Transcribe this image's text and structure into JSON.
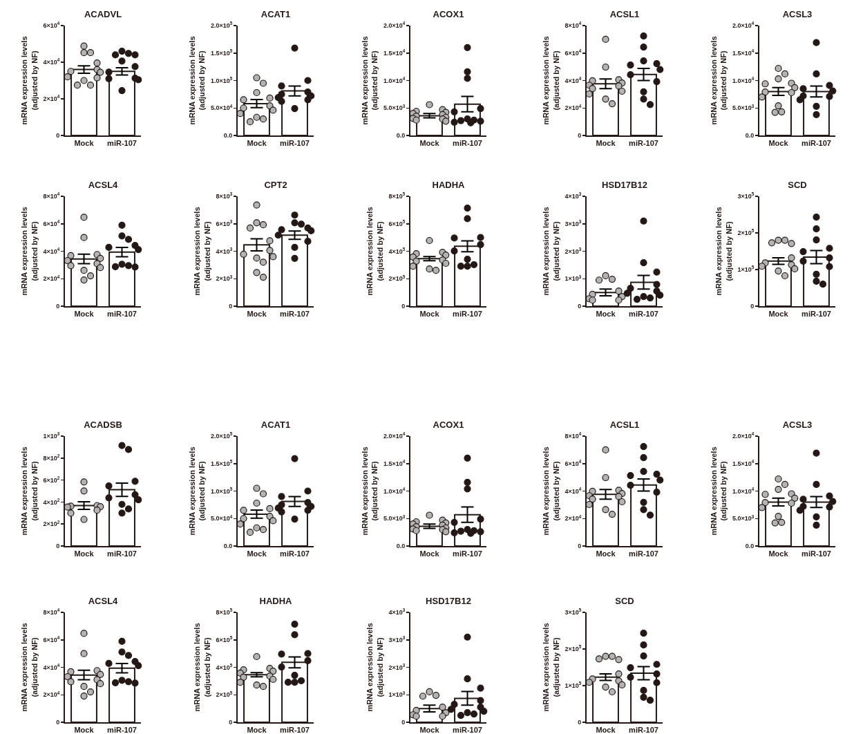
{
  "chart_data": [
    {
      "type": "bar",
      "title": "ACADVL",
      "ylabel": "mRNA expression levels\n(adjusted by NF)",
      "categories": [
        "Mock",
        "miR-107"
      ],
      "grid": false,
      "marker": "circle",
      "ylim": [
        0,
        60000
      ],
      "yticks": [
        {
          "value": 0,
          "label": "0"
        },
        {
          "value": 20000,
          "label": "2×10$^{4}$"
        },
        {
          "value": 40000,
          "label": "4×10$^{4}$"
        },
        {
          "value": 60000,
          "label": "6×10$^{4}$"
        }
      ],
      "series": [
        {
          "type": "bar",
          "color": "#ffffff",
          "values": [
            36000,
            35000
          ],
          "errors": [
            2000,
            2000
          ]
        },
        {
          "type": "scatter",
          "color": "#b3b3b3",
          "x": [
            "Mock",
            "Mock",
            "Mock",
            "Mock",
            "Mock",
            "Mock",
            "Mock",
            "Mock",
            "Mock",
            "Mock",
            "Mock",
            "Mock"
          ],
          "values": [
            48800,
            45200,
            45200,
            39600,
            36000,
            35000,
            34500,
            32000,
            31500,
            30000,
            27500,
            27500
          ]
        },
        {
          "type": "scatter",
          "color": "#231815",
          "x": [
            "miR-107",
            "miR-107",
            "miR-107",
            "miR-107",
            "miR-107",
            "miR-107",
            "miR-107",
            "miR-107",
            "miR-107",
            "miR-107",
            "miR-107"
          ],
          "values": [
            46000,
            44800,
            44000,
            44000,
            40600,
            37600,
            34600,
            31300,
            31000,
            30400,
            24500
          ]
        }
      ]
    },
    {
      "type": "bar",
      "title": "ACAT1",
      "ylabel": "mRNA expression levels\n(adjusted by NF)",
      "categories": [
        "Mock",
        "miR-107"
      ],
      "grid": false,
      "marker": "circle",
      "ylim": [
        0,
        200000
      ],
      "yticks": [
        {
          "value": 0,
          "label": "0.0"
        },
        {
          "value": 50000,
          "label": "5.0×10$^{4}$"
        },
        {
          "value": 100000,
          "label": "1.0×10$^{5}$"
        },
        {
          "value": 150000,
          "label": "1.5×10$^{5}$"
        },
        {
          "value": 200000,
          "label": "2.0×10$^{5}$"
        }
      ],
      "series": [
        {
          "type": "bar",
          "color": "#ffffff",
          "values": [
            58000,
            81000
          ],
          "errors": [
            7500,
            9000
          ]
        },
        {
          "type": "scatter",
          "color": "#b3b3b3",
          "x": [
            "Mock",
            "Mock",
            "Mock",
            "Mock",
            "Mock",
            "Mock",
            "Mock",
            "Mock",
            "Mock",
            "Mock",
            "Mock",
            "Mock"
          ],
          "values": [
            105000,
            95000,
            78000,
            68000,
            65000,
            54000,
            50000,
            46000,
            40000,
            33000,
            30000,
            25000
          ]
        },
        {
          "type": "scatter",
          "color": "#231815",
          "x": [
            "miR-107",
            "miR-107",
            "miR-107",
            "miR-107",
            "miR-107",
            "miR-107",
            "miR-107",
            "miR-107",
            "miR-107",
            "miR-107"
          ],
          "values": [
            159000,
            100000,
            90000,
            79000,
            75000,
            72000,
            69000,
            65000,
            62000,
            49000
          ]
        }
      ]
    },
    {
      "type": "bar",
      "title": "ACOX1",
      "ylabel": "mRNA expression levels\n(adjusted by NF)",
      "categories": [
        "Mock",
        "miR-107"
      ],
      "grid": false,
      "marker": "circle",
      "ylim": [
        0,
        20000
      ],
      "yticks": [
        {
          "value": 0,
          "label": "0.0"
        },
        {
          "value": 5000,
          "label": "5.0×10$^{3}$"
        },
        {
          "value": 10000,
          "label": "1.0×10$^{4}$"
        },
        {
          "value": 15000,
          "label": "1.5×10$^{4}$"
        },
        {
          "value": 20000,
          "label": "2.0×10$^{4}$"
        }
      ],
      "series": [
        {
          "type": "bar",
          "color": "#ffffff",
          "values": [
            3600,
            5700
          ],
          "errors": [
            400,
            1400
          ]
        },
        {
          "type": "scatter",
          "color": "#b3b3b3",
          "x": [
            "Mock",
            "Mock",
            "Mock",
            "Mock",
            "Mock",
            "Mock",
            "Mock",
            "Mock",
            "Mock",
            "Mock",
            "Mock",
            "Mock"
          ],
          "values": [
            5600,
            4700,
            4400,
            4200,
            4000,
            3800,
            3500,
            3300,
            3100,
            3000,
            2800,
            2600
          ]
        },
        {
          "type": "scatter",
          "color": "#231815",
          "x": [
            "miR-107",
            "miR-107",
            "miR-107",
            "miR-107",
            "miR-107",
            "miR-107",
            "miR-107",
            "miR-107",
            "miR-107",
            "miR-107",
            "miR-107"
          ],
          "values": [
            16000,
            11600,
            10400,
            4900,
            4300,
            3000,
            2800,
            2700,
            2600,
            2400,
            2300
          ]
        }
      ]
    },
    {
      "type": "bar",
      "title": "ACSL1",
      "ylabel": "mRNA expression levels\n(adjusted by NF)",
      "categories": [
        "Mock",
        "miR-107"
      ],
      "grid": false,
      "marker": "circle",
      "ylim": [
        0,
        80000
      ],
      "yticks": [
        {
          "value": 0,
          "label": "0"
        },
        {
          "value": 20000,
          "label": "2×10$^{4}$"
        },
        {
          "value": 40000,
          "label": "4×10$^{4}$"
        },
        {
          "value": 60000,
          "label": "6×10$^{4}$"
        },
        {
          "value": 80000,
          "label": "8×10$^{4}$"
        }
      ],
      "series": [
        {
          "type": "bar",
          "color": "#ffffff",
          "values": [
            37600,
            44400
          ],
          "errors": [
            3500,
            4400
          ]
        },
        {
          "type": "scatter",
          "color": "#b3b3b3",
          "x": [
            "Mock",
            "Mock",
            "Mock",
            "Mock",
            "Mock",
            "Mock",
            "Mock",
            "Mock",
            "Mock",
            "Mock",
            "Mock",
            "Mock"
          ],
          "values": [
            70000,
            49800,
            40600,
            39800,
            38200,
            36600,
            36000,
            34200,
            32200,
            30200,
            26500,
            23100
          ]
        },
        {
          "type": "scatter",
          "color": "#231815",
          "x": [
            "miR-107",
            "miR-107",
            "miR-107",
            "miR-107",
            "miR-107",
            "miR-107",
            "miR-107",
            "miR-107",
            "miR-107",
            "miR-107",
            "miR-107"
          ],
          "values": [
            72400,
            64300,
            54300,
            52300,
            51300,
            48000,
            44200,
            39200,
            31800,
            26500,
            22500
          ]
        }
      ]
    },
    {
      "type": "bar",
      "title": "ACSL3",
      "ylabel": "mRNA expression levels\n(adjusted by NF)",
      "categories": [
        "Mock",
        "miR-107"
      ],
      "grid": false,
      "marker": "circle",
      "ylim": [
        0,
        20000
      ],
      "yticks": [
        {
          "value": 0,
          "label": "0.0"
        },
        {
          "value": 5000,
          "label": "5.0×10$^{3}$"
        },
        {
          "value": 10000,
          "label": "1.0×10$^{4}$"
        },
        {
          "value": 15000,
          "label": "1.5×10$^{4}$"
        },
        {
          "value": 20000,
          "label": "2.0×10$^{4}$"
        }
      ],
      "series": [
        {
          "type": "bar",
          "color": "#ffffff",
          "values": [
            8000,
            8000
          ],
          "errors": [
            700,
            1000
          ]
        },
        {
          "type": "scatter",
          "color": "#b3b3b3",
          "x": [
            "Mock",
            "Mock",
            "Mock",
            "Mock",
            "Mock",
            "Mock",
            "Mock",
            "Mock",
            "Mock",
            "Mock",
            "Mock",
            "Mock"
          ],
          "values": [
            12200,
            11200,
            10300,
            9500,
            9400,
            8700,
            7900,
            7800,
            7000,
            5400,
            4300,
            4200
          ]
        },
        {
          "type": "scatter",
          "color": "#231815",
          "x": [
            "miR-107",
            "miR-107",
            "miR-107",
            "miR-107",
            "miR-107",
            "miR-107",
            "miR-107",
            "miR-107",
            "miR-107",
            "miR-107"
          ],
          "values": [
            16900,
            11200,
            9100,
            8500,
            8100,
            7200,
            7100,
            6500,
            5300,
            3800
          ]
        }
      ]
    },
    {
      "type": "bar",
      "title": "ACSL4",
      "ylabel": "mRNA expression levels\n(adjusted by NF)",
      "categories": [
        "Mock",
        "miR-107"
      ],
      "grid": false,
      "marker": "circle",
      "ylim": [
        0,
        80000
      ],
      "yticks": [
        {
          "value": 0,
          "label": "0"
        },
        {
          "value": 20000,
          "label": "2×10$^{4}$"
        },
        {
          "value": 40000,
          "label": "4×10$^{4}$"
        },
        {
          "value": 60000,
          "label": "6×10$^{4}$"
        },
        {
          "value": 80000,
          "label": "8×10$^{4}$"
        }
      ],
      "series": [
        {
          "type": "bar",
          "color": "#ffffff",
          "values": [
            34400,
            39400
          ],
          "errors": [
            3500,
            3400
          ]
        },
        {
          "type": "scatter",
          "color": "#b3b3b3",
          "x": [
            "Mock",
            "Mock",
            "Mock",
            "Mock",
            "Mock",
            "Mock",
            "Mock",
            "Mock",
            "Mock",
            "Mock",
            "Mock",
            "Mock"
          ],
          "values": [
            64700,
            50000,
            37600,
            36800,
            34800,
            33200,
            31000,
            29500,
            28100,
            26100,
            22100,
            19100
          ]
        },
        {
          "type": "scatter",
          "color": "#231815",
          "x": [
            "miR-107",
            "miR-107",
            "miR-107",
            "miR-107",
            "miR-107",
            "miR-107",
            "miR-107",
            "miR-107",
            "miR-107",
            "miR-107"
          ],
          "values": [
            58900,
            51100,
            48600,
            44200,
            42800,
            41200,
            30500,
            29500,
            28700,
            28500
          ]
        }
      ]
    },
    {
      "type": "bar",
      "title": "CPT2",
      "ylabel": "mRNA expression levels\n(adjusted by NF)",
      "categories": [
        "Mock",
        "miR-107"
      ],
      "grid": false,
      "marker": "circle",
      "ylim": [
        0,
        8000
      ],
      "yticks": [
        {
          "value": 0,
          "label": "0"
        },
        {
          "value": 2000,
          "label": "2×10$^{3}$"
        },
        {
          "value": 4000,
          "label": "4×10$^{3}$"
        },
        {
          "value": 6000,
          "label": "6×10$^{3}$"
        },
        {
          "value": 8000,
          "label": "8×10$^{3}$"
        }
      ],
      "series": [
        {
          "type": "bar",
          "color": "#ffffff",
          "values": [
            4460,
            5170
          ],
          "errors": [
            440,
            300
          ]
        },
        {
          "type": "scatter",
          "color": "#b3b3b3",
          "x": [
            "Mock",
            "Mock",
            "Mock",
            "Mock",
            "Mock",
            "Mock",
            "Mock",
            "Mock",
            "Mock",
            "Mock",
            "Mock",
            "Mock"
          ],
          "values": [
            7360,
            6070,
            5930,
            5690,
            4760,
            4060,
            3780,
            3600,
            3500,
            3200,
            2450,
            2110
          ]
        },
        {
          "type": "scatter",
          "color": "#231815",
          "x": [
            "miR-107",
            "miR-107",
            "miR-107",
            "miR-107",
            "miR-107",
            "miR-107",
            "miR-107",
            "miR-107",
            "miR-107",
            "miR-107"
          ],
          "values": [
            6630,
            6070,
            5970,
            5690,
            5570,
            5490,
            5170,
            4720,
            4280,
            3480
          ]
        }
      ]
    },
    {
      "type": "bar",
      "title": "HADHA",
      "ylabel": "mRNA expression levels\n(adjusted by NF)",
      "categories": [
        "Mock",
        "miR-107"
      ],
      "grid": false,
      "marker": "circle",
      "ylim": [
        0,
        800000
      ],
      "yticks": [
        {
          "value": 0,
          "label": "0"
        },
        {
          "value": 200000,
          "label": "2×10$^{5}$"
        },
        {
          "value": 400000,
          "label": "4×10$^{5}$"
        },
        {
          "value": 600000,
          "label": "6×10$^{5}$"
        },
        {
          "value": 800000,
          "label": "8×10$^{5}$"
        }
      ],
      "series": [
        {
          "type": "bar",
          "color": "#ffffff",
          "values": [
            346000,
            436000
          ],
          "errors": [
            15000,
            40000
          ]
        },
        {
          "type": "scatter",
          "color": "#b3b3b3",
          "x": [
            "Mock",
            "Mock",
            "Mock",
            "Mock",
            "Mock",
            "Mock",
            "Mock",
            "Mock",
            "Mock",
            "Mock",
            "Mock"
          ],
          "values": [
            478000,
            392000,
            382000,
            372000,
            358000,
            336000,
            328000,
            312000,
            291000,
            271000,
            261000
          ]
        },
        {
          "type": "scatter",
          "color": "#231815",
          "x": [
            "miR-107",
            "miR-107",
            "miR-107",
            "miR-107",
            "miR-107",
            "miR-107",
            "miR-107",
            "miR-107",
            "miR-107",
            "miR-107"
          ],
          "values": [
            714000,
            637000,
            500000,
            496000,
            448000,
            402000,
            342000,
            302000,
            291000,
            291000
          ]
        }
      ]
    },
    {
      "type": "bar",
      "title": "HSD17B12",
      "ylabel": "mRNA expression levels\n(adjusted by NF)",
      "categories": [
        "Mock",
        "miR-107"
      ],
      "grid": false,
      "marker": "circle",
      "ylim": [
        0,
        4000
      ],
      "yticks": [
        {
          "value": 0,
          "label": "0"
        },
        {
          "value": 1000,
          "label": "1×10$^{3}$"
        },
        {
          "value": 2000,
          "label": "2×10$^{3}$"
        },
        {
          "value": 3000,
          "label": "3×10$^{3}$"
        },
        {
          "value": 4000,
          "label": "4×10$^{3}$"
        }
      ],
      "series": [
        {
          "type": "bar",
          "color": "#ffffff",
          "values": [
            500,
            870
          ],
          "errors": [
            120,
            250
          ]
        },
        {
          "type": "scatter",
          "color": "#b3b3b3",
          "x": [
            "Mock",
            "Mock",
            "Mock",
            "Mock",
            "Mock",
            "Mock",
            "Mock",
            "Mock",
            "Mock"
          ],
          "values": [
            1110,
            980,
            950,
            550,
            430,
            350,
            270,
            220,
            220
          ]
        },
        {
          "type": "scatter",
          "color": "#231815",
          "x": [
            "miR-107",
            "miR-107",
            "miR-107",
            "miR-107",
            "miR-107",
            "miR-107",
            "miR-107",
            "miR-107",
            "miR-107",
            "miR-107",
            "miR-107"
          ],
          "values": [
            3100,
            1580,
            1240,
            790,
            650,
            550,
            470,
            400,
            350,
            300,
            250
          ]
        }
      ]
    },
    {
      "type": "bar",
      "title": "SCD",
      "ylabel": "mRNA expression levels\n(adjusted by NF)",
      "categories": [
        "Mock",
        "miR-107"
      ],
      "grid": false,
      "marker": "circle",
      "ylim": [
        0,
        300000
      ],
      "yticks": [
        {
          "value": 0,
          "label": "0"
        },
        {
          "value": 100000,
          "label": "1×10$^{5}$"
        },
        {
          "value": 200000,
          "label": "2×10$^{5}$"
        },
        {
          "value": 300000,
          "label": "3×10$^{5}$"
        }
      ],
      "series": [
        {
          "type": "bar",
          "color": "#ffffff",
          "values": [
            123000,
            134000
          ],
          "errors": [
            9000,
            18000
          ]
        },
        {
          "type": "scatter",
          "color": "#b3b3b3",
          "x": [
            "Mock",
            "Mock",
            "Mock",
            "Mock",
            "Mock",
            "Mock",
            "Mock",
            "Mock",
            "Mock",
            "Mock",
            "Mock"
          ],
          "values": [
            180000,
            180000,
            173000,
            171000,
            132000,
            118000,
            113000,
            109000,
            102000,
            96000,
            83000
          ]
        },
        {
          "type": "scatter",
          "color": "#231815",
          "x": [
            "miR-107",
            "miR-107",
            "miR-107",
            "miR-107",
            "miR-107",
            "miR-107",
            "miR-107",
            "miR-107",
            "miR-107",
            "miR-107",
            "miR-107"
          ],
          "values": [
            243000,
            211000,
            181000,
            158000,
            149000,
            132000,
            123000,
            108000,
            87000,
            68000,
            60000
          ]
        }
      ]
    },
    {
      "type": "bar",
      "title": "ACADSB",
      "ylabel": "mRNA expression levels\n(adjusted by NF)",
      "categories": [
        "Mock",
        "miR-107"
      ],
      "grid": false,
      "marker": "circle",
      "ylim": [
        0,
        1000
      ],
      "yticks": [
        {
          "value": 0,
          "label": "0"
        },
        {
          "value": 200,
          "label": "2×10$^{2}$"
        },
        {
          "value": 400,
          "label": "4×10$^{2}$"
        },
        {
          "value": 600,
          "label": "6×10$^{2}$"
        },
        {
          "value": 800,
          "label": "8×10$^{2}$"
        },
        {
          "value": 1000,
          "label": "1×10$^{3}$"
        }
      ],
      "series": [
        {
          "type": "bar",
          "color": "#ffffff",
          "values": [
            368,
            512
          ],
          "errors": [
            34,
            60
          ]
        },
        {
          "type": "scatter",
          "color": "#b3b3b3",
          "x": [
            "Mock",
            "Mock",
            "Mock",
            "Mock",
            "Mock",
            "Mock",
            "Mock",
            "Mock",
            "Mock"
          ],
          "values": [
            583,
            501,
            368,
            362,
            358,
            354,
            326,
            299,
            242
          ]
        },
        {
          "type": "scatter",
          "color": "#231815",
          "x": [
            "miR-107",
            "miR-107",
            "miR-107",
            "miR-107",
            "miR-107",
            "miR-107",
            "miR-107",
            "miR-107",
            "miR-107",
            "miR-107"
          ],
          "values": [
            914,
            878,
            589,
            547,
            467,
            438,
            421,
            379,
            337,
            299
          ]
        }
      ]
    },
    {
      "type": "bar",
      "title": "ACAT1",
      "ylabel": "mRNA expression levels\n(adjusted by NF)",
      "categories": [
        "Mock",
        "miR-107"
      ],
      "grid": false,
      "marker": "circle",
      "ylim": [
        0,
        200000
      ],
      "yticks": [
        {
          "value": 0,
          "label": "0.0"
        },
        {
          "value": 50000,
          "label": "5.0×10$^{4}$"
        },
        {
          "value": 100000,
          "label": "1.0×10$^{5}$"
        },
        {
          "value": 150000,
          "label": "1.5×10$^{5}$"
        },
        {
          "value": 200000,
          "label": "2.0×10$^{5}$"
        }
      ],
      "series": [
        {
          "type": "bar",
          "color": "#ffffff",
          "values": [
            58000,
            81000
          ],
          "errors": [
            7500,
            9000
          ]
        },
        {
          "type": "scatter",
          "color": "#b3b3b3",
          "x": [
            "Mock",
            "Mock",
            "Mock",
            "Mock",
            "Mock",
            "Mock",
            "Mock",
            "Mock",
            "Mock",
            "Mock",
            "Mock",
            "Mock"
          ],
          "values": [
            105000,
            95000,
            78000,
            68000,
            65000,
            54000,
            50000,
            46000,
            40000,
            33000,
            30000,
            25000
          ]
        },
        {
          "type": "scatter",
          "color": "#231815",
          "x": [
            "miR-107",
            "miR-107",
            "miR-107",
            "miR-107",
            "miR-107",
            "miR-107",
            "miR-107",
            "miR-107",
            "miR-107",
            "miR-107"
          ],
          "values": [
            159000,
            100000,
            90000,
            79000,
            75000,
            72000,
            69000,
            65000,
            62000,
            49000
          ]
        }
      ]
    },
    {
      "type": "bar",
      "title": "ACOX1",
      "ylabel": "mRNA expression levels\n(adjusted by NF)",
      "categories": [
        "Mock",
        "miR-107"
      ],
      "grid": false,
      "marker": "circle",
      "ylim": [
        0,
        20000
      ],
      "yticks": [
        {
          "value": 0,
          "label": "0.0"
        },
        {
          "value": 5000,
          "label": "5.0×10$^{3}$"
        },
        {
          "value": 10000,
          "label": "1.0×10$^{4}$"
        },
        {
          "value": 15000,
          "label": "1.5×10$^{4}$"
        },
        {
          "value": 20000,
          "label": "2.0×10$^{4}$"
        }
      ],
      "series": [
        {
          "type": "bar",
          "color": "#ffffff",
          "values": [
            3600,
            5700
          ],
          "errors": [
            400,
            1400
          ]
        },
        {
          "type": "scatter",
          "color": "#b3b3b3",
          "x": [
            "Mock",
            "Mock",
            "Mock",
            "Mock",
            "Mock",
            "Mock",
            "Mock",
            "Mock",
            "Mock",
            "Mock",
            "Mock",
            "Mock"
          ],
          "values": [
            5600,
            4700,
            4400,
            4200,
            4000,
            3800,
            3500,
            3300,
            3100,
            3000,
            2800,
            2600
          ]
        },
        {
          "type": "scatter",
          "color": "#231815",
          "x": [
            "miR-107",
            "miR-107",
            "miR-107",
            "miR-107",
            "miR-107",
            "miR-107",
            "miR-107",
            "miR-107",
            "miR-107",
            "miR-107",
            "miR-107"
          ],
          "values": [
            16000,
            11600,
            10400,
            4900,
            4300,
            3000,
            2800,
            2700,
            2600,
            2400,
            2300
          ]
        }
      ]
    },
    {
      "type": "bar",
      "title": "ACSL1",
      "ylabel": "mRNA expression levels\n(adjusted by NF)",
      "categories": [
        "Mock",
        "miR-107"
      ],
      "grid": false,
      "marker": "circle",
      "ylim": [
        0,
        80000
      ],
      "yticks": [
        {
          "value": 0,
          "label": "0"
        },
        {
          "value": 20000,
          "label": "2×10$^{4}$"
        },
        {
          "value": 40000,
          "label": "4×10$^{4}$"
        },
        {
          "value": 60000,
          "label": "6×10$^{4}$"
        },
        {
          "value": 80000,
          "label": "8×10$^{4}$"
        }
      ],
      "series": [
        {
          "type": "bar",
          "color": "#ffffff",
          "values": [
            37600,
            44400
          ],
          "errors": [
            3500,
            4400
          ]
        },
        {
          "type": "scatter",
          "color": "#b3b3b3",
          "x": [
            "Mock",
            "Mock",
            "Mock",
            "Mock",
            "Mock",
            "Mock",
            "Mock",
            "Mock",
            "Mock",
            "Mock",
            "Mock",
            "Mock"
          ],
          "values": [
            70000,
            49800,
            40600,
            39800,
            38200,
            36600,
            36000,
            34200,
            32200,
            30200,
            26500,
            23100
          ]
        },
        {
          "type": "scatter",
          "color": "#231815",
          "x": [
            "miR-107",
            "miR-107",
            "miR-107",
            "miR-107",
            "miR-107",
            "miR-107",
            "miR-107",
            "miR-107",
            "miR-107",
            "miR-107",
            "miR-107"
          ],
          "values": [
            72400,
            64300,
            54300,
            52300,
            51300,
            48000,
            44200,
            39200,
            31800,
            26500,
            22500
          ]
        }
      ]
    },
    {
      "type": "bar",
      "title": "ACSL3",
      "ylabel": "mRNA expression levels\n(adjusted by NF)",
      "categories": [
        "Mock",
        "miR-107"
      ],
      "grid": false,
      "marker": "circle",
      "ylim": [
        0,
        20000
      ],
      "yticks": [
        {
          "value": 0,
          "label": "0.0"
        },
        {
          "value": 5000,
          "label": "5.0×10$^{3}$"
        },
        {
          "value": 10000,
          "label": "1.0×10$^{4}$"
        },
        {
          "value": 15000,
          "label": "1.5×10$^{4}$"
        },
        {
          "value": 20000,
          "label": "2.0×10$^{4}$"
        }
      ],
      "series": [
        {
          "type": "bar",
          "color": "#ffffff",
          "values": [
            8000,
            8000
          ],
          "errors": [
            700,
            1000
          ]
        },
        {
          "type": "scatter",
          "color": "#b3b3b3",
          "x": [
            "Mock",
            "Mock",
            "Mock",
            "Mock",
            "Mock",
            "Mock",
            "Mock",
            "Mock",
            "Mock",
            "Mock",
            "Mock",
            "Mock"
          ],
          "values": [
            12200,
            11200,
            10300,
            9500,
            9400,
            8700,
            7900,
            7800,
            7000,
            5400,
            4300,
            4200
          ]
        },
        {
          "type": "scatter",
          "color": "#231815",
          "x": [
            "miR-107",
            "miR-107",
            "miR-107",
            "miR-107",
            "miR-107",
            "miR-107",
            "miR-107",
            "miR-107",
            "miR-107",
            "miR-107"
          ],
          "values": [
            16900,
            11200,
            9100,
            8500,
            8100,
            7200,
            7100,
            6500,
            5300,
            3800
          ]
        }
      ]
    },
    {
      "type": "bar",
      "title": "ACSL4",
      "ylabel": "mRNA expression levels\n(adjusted by NF)",
      "categories": [
        "Mock",
        "miR-107"
      ],
      "grid": false,
      "marker": "circle",
      "ylim": [
        0,
        80000
      ],
      "yticks": [
        {
          "value": 0,
          "label": "0"
        },
        {
          "value": 20000,
          "label": "2×10$^{4}$"
        },
        {
          "value": 40000,
          "label": "4×10$^{4}$"
        },
        {
          "value": 60000,
          "label": "6×10$^{4}$"
        },
        {
          "value": 80000,
          "label": "8×10$^{4}$"
        }
      ],
      "series": [
        {
          "type": "bar",
          "color": "#ffffff",
          "values": [
            34400,
            39400
          ],
          "errors": [
            3500,
            3400
          ]
        },
        {
          "type": "scatter",
          "color": "#b3b3b3",
          "x": [
            "Mock",
            "Mock",
            "Mock",
            "Mock",
            "Mock",
            "Mock",
            "Mock",
            "Mock",
            "Mock",
            "Mock",
            "Mock",
            "Mock"
          ],
          "values": [
            64700,
            50000,
            37600,
            36800,
            34800,
            33200,
            31000,
            29500,
            28100,
            26100,
            22100,
            19100
          ]
        },
        {
          "type": "scatter",
          "color": "#231815",
          "x": [
            "miR-107",
            "miR-107",
            "miR-107",
            "miR-107",
            "miR-107",
            "miR-107",
            "miR-107",
            "miR-107",
            "miR-107",
            "miR-107"
          ],
          "values": [
            58900,
            51100,
            48600,
            44200,
            42800,
            41200,
            30500,
            29500,
            28700,
            28500
          ]
        }
      ]
    },
    {
      "type": "bar",
      "title": "HADHA",
      "ylabel": "mRNA expression levels\n(adjusted by NF)",
      "categories": [
        "Mock",
        "miR-107"
      ],
      "grid": false,
      "marker": "circle",
      "ylim": [
        0,
        800000
      ],
      "yticks": [
        {
          "value": 0,
          "label": "0"
        },
        {
          "value": 200000,
          "label": "2×10$^{5}$"
        },
        {
          "value": 400000,
          "label": "4×10$^{5}$"
        },
        {
          "value": 600000,
          "label": "6×10$^{5}$"
        },
        {
          "value": 800000,
          "label": "8×10$^{5}$"
        }
      ],
      "series": [
        {
          "type": "bar",
          "color": "#ffffff",
          "values": [
            346000,
            436000
          ],
          "errors": [
            15000,
            40000
          ]
        },
        {
          "type": "scatter",
          "color": "#b3b3b3",
          "x": [
            "Mock",
            "Mock",
            "Mock",
            "Mock",
            "Mock",
            "Mock",
            "Mock",
            "Mock",
            "Mock",
            "Mock",
            "Mock"
          ],
          "values": [
            478000,
            392000,
            382000,
            372000,
            358000,
            336000,
            328000,
            312000,
            291000,
            271000,
            261000
          ]
        },
        {
          "type": "scatter",
          "color": "#231815",
          "x": [
            "miR-107",
            "miR-107",
            "miR-107",
            "miR-107",
            "miR-107",
            "miR-107",
            "miR-107",
            "miR-107",
            "miR-107",
            "miR-107"
          ],
          "values": [
            714000,
            637000,
            500000,
            496000,
            448000,
            402000,
            342000,
            302000,
            291000,
            291000
          ]
        }
      ]
    },
    {
      "type": "bar",
      "title": "HSD17B12",
      "ylabel": "mRNA expression levels\n(adjusted by NF)",
      "categories": [
        "Mock",
        "miR-107"
      ],
      "grid": false,
      "marker": "circle",
      "ylim": [
        0,
        4000
      ],
      "yticks": [
        {
          "value": 0,
          "label": "0"
        },
        {
          "value": 1000,
          "label": "1×10$^{3}$"
        },
        {
          "value": 2000,
          "label": "2×10$^{3}$"
        },
        {
          "value": 3000,
          "label": "3×10$^{3}$"
        },
        {
          "value": 4000,
          "label": "4×10$^{3}$"
        }
      ],
      "series": [
        {
          "type": "bar",
          "color": "#ffffff",
          "values": [
            500,
            870
          ],
          "errors": [
            120,
            250
          ]
        },
        {
          "type": "scatter",
          "color": "#b3b3b3",
          "x": [
            "Mock",
            "Mock",
            "Mock",
            "Mock",
            "Mock",
            "Mock",
            "Mock",
            "Mock",
            "Mock"
          ],
          "values": [
            1110,
            980,
            950,
            550,
            430,
            350,
            270,
            220,
            220
          ]
        },
        {
          "type": "scatter",
          "color": "#231815",
          "x": [
            "miR-107",
            "miR-107",
            "miR-107",
            "miR-107",
            "miR-107",
            "miR-107",
            "miR-107",
            "miR-107",
            "miR-107",
            "miR-107",
            "miR-107"
          ],
          "values": [
            3100,
            1580,
            1240,
            790,
            650,
            550,
            470,
            400,
            350,
            300,
            250
          ]
        }
      ]
    },
    {
      "type": "bar",
      "title": "SCD",
      "ylabel": "mRNA expression levels\n(adjusted by NF)",
      "categories": [
        "Mock",
        "miR-107"
      ],
      "grid": false,
      "marker": "circle",
      "ylim": [
        0,
        300000
      ],
      "yticks": [
        {
          "value": 0,
          "label": "0"
        },
        {
          "value": 100000,
          "label": "1×10$^{5}$"
        },
        {
          "value": 200000,
          "label": "2×10$^{5}$"
        },
        {
          "value": 300000,
          "label": "3×10$^{5}$"
        }
      ],
      "series": [
        {
          "type": "bar",
          "color": "#ffffff",
          "values": [
            123000,
            134000
          ],
          "errors": [
            9000,
            18000
          ]
        },
        {
          "type": "scatter",
          "color": "#b3b3b3",
          "x": [
            "Mock",
            "Mock",
            "Mock",
            "Mock",
            "Mock",
            "Mock",
            "Mock",
            "Mock",
            "Mock",
            "Mock",
            "Mock"
          ],
          "values": [
            180000,
            180000,
            173000,
            171000,
            132000,
            118000,
            113000,
            109000,
            102000,
            96000,
            83000
          ]
        },
        {
          "type": "scatter",
          "color": "#231815",
          "x": [
            "miR-107",
            "miR-107",
            "miR-107",
            "miR-107",
            "miR-107",
            "miR-107",
            "miR-107",
            "miR-107",
            "miR-107",
            "miR-107",
            "miR-107"
          ],
          "values": [
            243000,
            211000,
            181000,
            158000,
            149000,
            132000,
            123000,
            108000,
            87000,
            68000,
            60000
          ]
        }
      ]
    }
  ]
}
